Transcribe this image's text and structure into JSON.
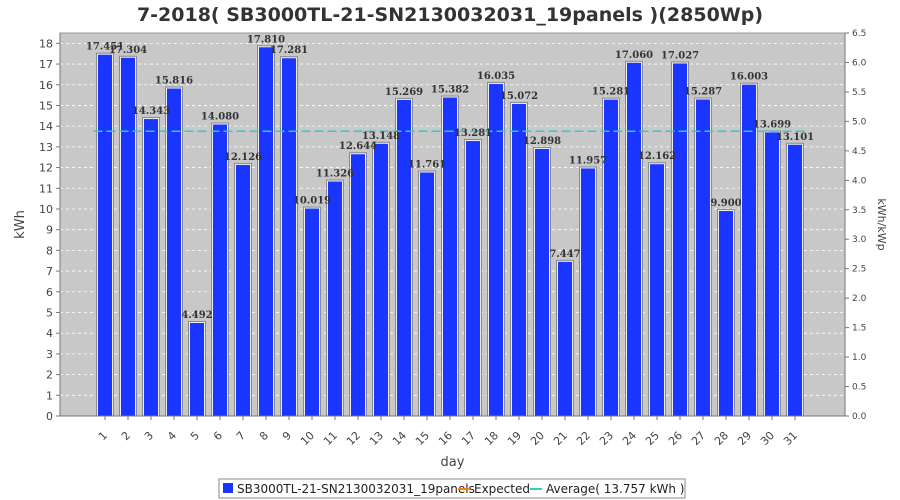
{
  "chart_data": {
    "type": "bar",
    "title": "7-2018( SB3000TL-21-SN2130032031_19panels )(2850Wp)",
    "xlabel": "day",
    "ylabel": "kWh",
    "ylabel_right": "kWh/kWp",
    "categories": [
      "1",
      "2",
      "3",
      "4",
      "5",
      "6",
      "7",
      "8",
      "9",
      "10",
      "11",
      "12",
      "13",
      "14",
      "15",
      "16",
      "17",
      "18",
      "19",
      "20",
      "21",
      "22",
      "23",
      "24",
      "25",
      "26",
      "27",
      "28",
      "29",
      "30",
      "31"
    ],
    "series": [
      {
        "name": "SB3000TL-21-SN2130032031_19panels",
        "color": "#1a35ff",
        "values": [
          17.451,
          17.304,
          14.343,
          15.816,
          4.492,
          14.08,
          12.126,
          17.81,
          17.281,
          10.019,
          11.326,
          12.644,
          13.148,
          15.269,
          11.761,
          15.382,
          13.281,
          16.035,
          15.072,
          12.898,
          7.447,
          11.957,
          15.281,
          17.06,
          12.162,
          17.027,
          15.287,
          9.9,
          16.003,
          13.699,
          13.101
        ],
        "labels": [
          "17.451",
          "17.304",
          "14.343",
          "15.816",
          "4.492",
          "14.080",
          "12.126",
          "17.810",
          "17.281",
          "10.019",
          "11.326",
          "12.644",
          "13.148",
          "15.269",
          "11.761",
          "15.382",
          "13.281",
          "16.035",
          "15.072",
          "12.898",
          "7.447",
          "11.957",
          "15.281",
          "17.060",
          "12.162",
          "17.027",
          "15.287",
          "9.900",
          "16.003",
          "13.699",
          "13.101"
        ]
      }
    ],
    "average": 13.757,
    "ylim": [
      0,
      18.5
    ],
    "yticks": [
      0,
      1,
      2,
      3,
      4,
      5,
      6,
      7,
      8,
      9,
      10,
      11,
      12,
      13,
      14,
      15,
      16,
      17,
      18
    ],
    "ylim_right": [
      0,
      6.5
    ],
    "yticks_right": [
      "0.0",
      "0.5",
      "1.0",
      "1.5",
      "2.0",
      "2.5",
      "3.0",
      "3.5",
      "4.0",
      "4.5",
      "5.0",
      "5.5",
      "6.0",
      "6.5"
    ],
    "grid": true,
    "legend": {
      "placement": "bottom",
      "items": [
        {
          "label": "SB3000TL-21-SN2130032031_19panels",
          "color": "#1a35ff",
          "kind": "box"
        },
        {
          "label": "Expected",
          "color": "#ff8000",
          "kind": "line"
        },
        {
          "label": "Average( 13.757 kWh )",
          "color": "#2ad0c8",
          "kind": "line"
        }
      ]
    },
    "colors": {
      "plot_bg": "#c8c8c8",
      "bar": "#1a35ff",
      "expected": "#ff8000",
      "average": "#2ad0c8"
    }
  }
}
